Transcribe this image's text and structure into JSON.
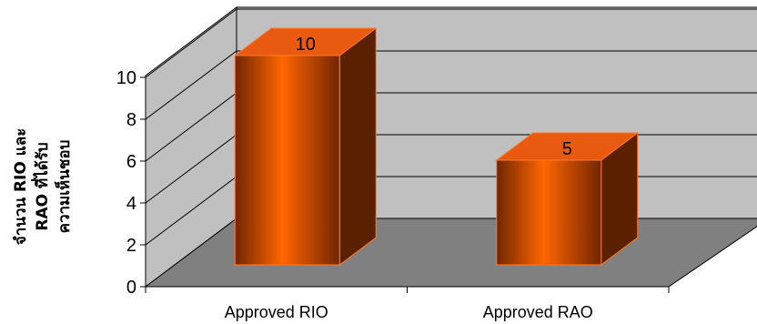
{
  "chart_data": {
    "type": "bar",
    "categories": [
      "Approved RIO",
      "Approved RAO"
    ],
    "values": [
      10,
      5
    ],
    "data_labels": [
      "10",
      "5"
    ],
    "title": "",
    "xlabel": "",
    "ylabel_lines": [
      "จำนวน RIO และ",
      "RAO ที่ได้รับ",
      "ความเห็นชอบ"
    ],
    "ylim": [
      0,
      10
    ],
    "yticks": [
      0,
      2,
      4,
      6,
      8,
      10
    ],
    "grid": true,
    "legend": "none",
    "style": "3d-column",
    "colors": {
      "bar_front_light": "#ff6600",
      "bar_front_dark": "#702600",
      "bar_top": "#e85a10",
      "bar_side": "#5a2000",
      "bar_edge": "#ff7a2a",
      "back_wall": "#c0c0c0",
      "side_wall": "#c0c0c0",
      "floor": "#808080",
      "gridline": "#000000"
    }
  }
}
